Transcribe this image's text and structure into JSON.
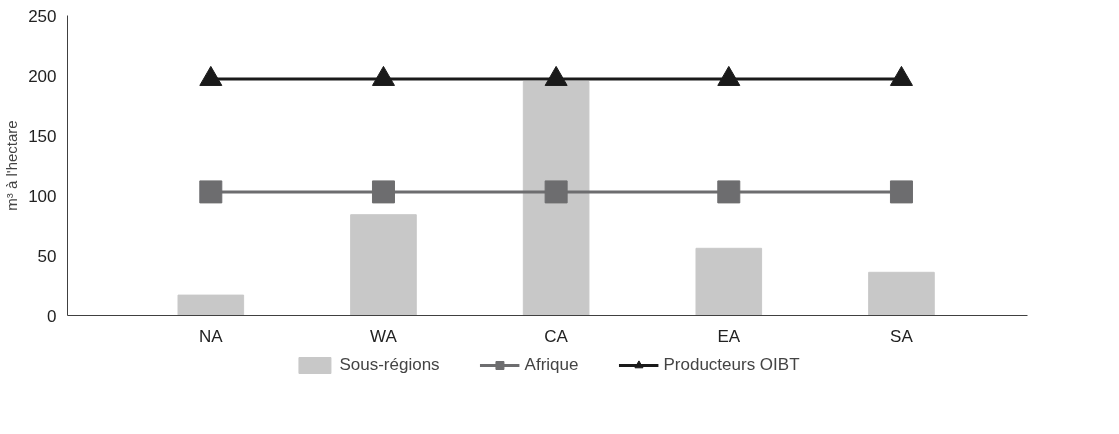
{
  "chart_data": {
    "type": "bar",
    "ylabel": "m³ à l'hectare",
    "categories": [
      "NA",
      "WA",
      "CA",
      "EA",
      "SA"
    ],
    "series": [
      {
        "name": "Sous-régions",
        "color": "#c8c8c8",
        "values": [
          17,
          84,
          195,
          56,
          36
        ]
      },
      {
        "name": "Afrique",
        "type": "line",
        "color": "#6d6d6f",
        "marker": "square",
        "values": [
          103,
          103,
          103,
          103,
          103
        ]
      },
      {
        "name": "Producteurs OIBT",
        "type": "line",
        "color": "#1a1a1a",
        "marker": "triangle",
        "values": [
          197,
          197,
          197,
          197,
          197
        ]
      }
    ],
    "ylim": [
      0,
      250
    ],
    "yticks": [
      0,
      50,
      100,
      150,
      200,
      250
    ],
    "grid": false,
    "legend": "bottom"
  }
}
